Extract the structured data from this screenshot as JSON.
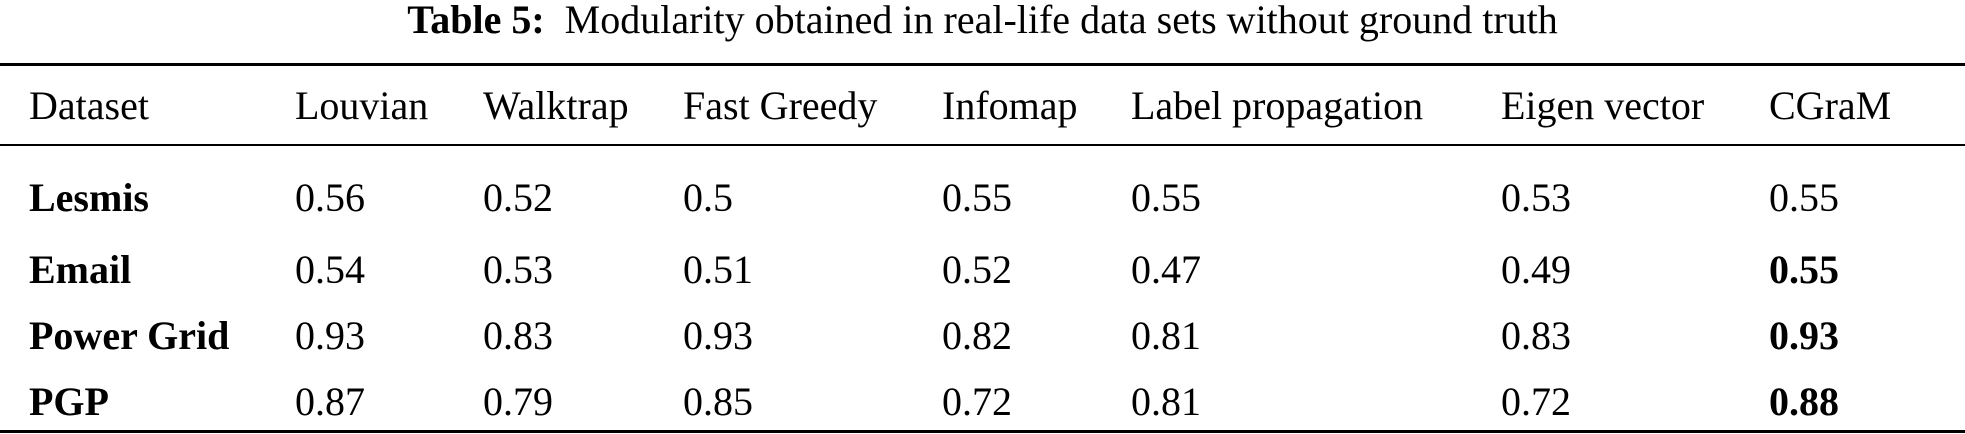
{
  "caption": {
    "label": "Table 5:",
    "text": "Modularity obtained in real-life data sets without ground truth"
  },
  "table": {
    "headers": [
      "Dataset",
      "Louvian",
      "Walktrap",
      "Fast Greedy",
      "Infomap",
      "Label propagation",
      "Eigen vector",
      "CGraM"
    ],
    "rows": [
      {
        "dataset": "Lesmis",
        "values": [
          "0.56",
          "0.52",
          "0.5",
          "0.55",
          "0.55",
          "0.53",
          "0.55"
        ],
        "cgram_bold": false
      },
      {
        "dataset": "Email",
        "values": [
          "0.54",
          "0.53",
          "0.51",
          "0.52",
          "0.47",
          "0.49",
          "0.55"
        ],
        "cgram_bold": true
      },
      {
        "dataset": "Power Grid",
        "values": [
          "0.93",
          "0.83",
          "0.93",
          "0.82",
          "0.81",
          "0.83",
          "0.93"
        ],
        "cgram_bold": true
      },
      {
        "dataset": "PGP",
        "values": [
          "0.87",
          "0.79",
          "0.85",
          "0.72",
          "0.81",
          "0.72",
          "0.88"
        ],
        "cgram_bold": true
      }
    ]
  }
}
